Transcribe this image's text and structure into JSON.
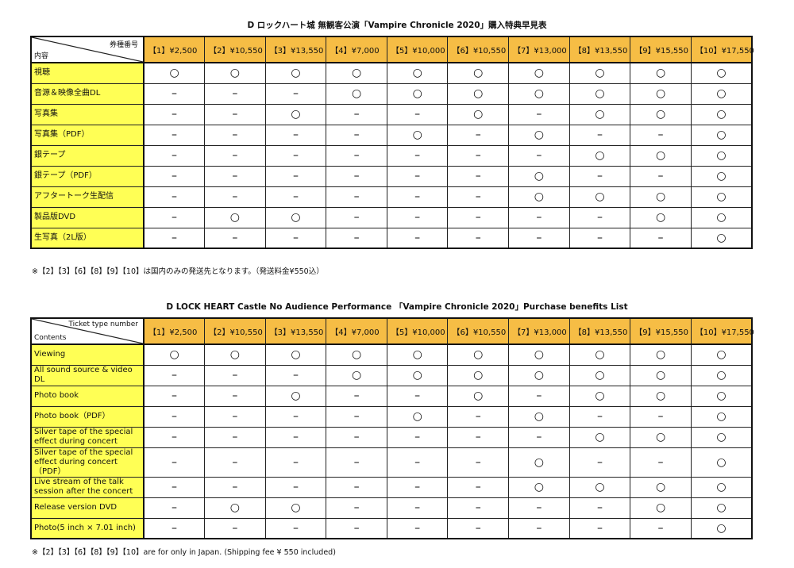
{
  "tables": [
    {
      "title": "D ロックハート城 無観客公演「Vampire Chronicle 2020」購入特典早見表",
      "corner_top": "券種番号",
      "corner_bottom": "内容",
      "columns": [
        "【1】¥2,500",
        "【2】¥10,550",
        "【3】¥13,550",
        "【4】¥7,000",
        "【5】¥10,000",
        "【6】¥10,550",
        "【7】¥13,000",
        "【8】¥13,550",
        "【9】¥15,550",
        "【10】¥17,550"
      ],
      "rows": [
        {
          "label": "視聴",
          "marks": [
            "○",
            "○",
            "○",
            "○",
            "○",
            "○",
            "○",
            "○",
            "○",
            "○"
          ]
        },
        {
          "label": "音源＆映像全曲DL",
          "marks": [
            "–",
            "–",
            "–",
            "○",
            "○",
            "○",
            "○",
            "○",
            "○",
            "○"
          ]
        },
        {
          "label": "写真集",
          "marks": [
            "–",
            "–",
            "○",
            "–",
            "–",
            "○",
            "–",
            "○",
            "○",
            "○"
          ]
        },
        {
          "label": "写真集（PDF）",
          "marks": [
            "–",
            "–",
            "–",
            "–",
            "○",
            "–",
            "○",
            "–",
            "–",
            "○"
          ]
        },
        {
          "label": "銀テープ",
          "marks": [
            "–",
            "–",
            "–",
            "–",
            "–",
            "–",
            "–",
            "○",
            "○",
            "○"
          ]
        },
        {
          "label": "銀テープ（PDF）",
          "marks": [
            "–",
            "–",
            "–",
            "–",
            "–",
            "–",
            "○",
            "–",
            "–",
            "○"
          ]
        },
        {
          "label": "アフタートーク生配信",
          "marks": [
            "–",
            "–",
            "–",
            "–",
            "–",
            "–",
            "○",
            "○",
            "○",
            "○"
          ]
        },
        {
          "label": "製品版DVD",
          "marks": [
            "–",
            "○",
            "○",
            "–",
            "–",
            "–",
            "–",
            "–",
            "○",
            "○"
          ]
        },
        {
          "label": "生写真（2L版）",
          "marks": [
            "–",
            "–",
            "–",
            "–",
            "–",
            "–",
            "–",
            "–",
            "–",
            "○"
          ]
        }
      ],
      "note": "※【2】【3】【6】【8】【9】【10】は国内のみの発送先となります。（発送料金¥550込）"
    },
    {
      "title": "D LOCK HEART Castle No Audience Performance 「Vampire Chronicle 2020」Purchase benefits List",
      "corner_top": "Ticket type number",
      "corner_bottom": "Contents",
      "columns": [
        "【1】¥2,500",
        "【2】¥10,550",
        "【3】¥13,550",
        "【4】¥7,000",
        "【5】¥10,000",
        "【6】¥10,550",
        "【7】¥13,000",
        "【8】¥13,550",
        "【9】¥15,550",
        "【10】¥17,550"
      ],
      "rows": [
        {
          "label": "Viewing",
          "marks": [
            "○",
            "○",
            "○",
            "○",
            "○",
            "○",
            "○",
            "○",
            "○",
            "○"
          ]
        },
        {
          "label": "All sound source & video DL",
          "marks": [
            "–",
            "–",
            "–",
            "○",
            "○",
            "○",
            "○",
            "○",
            "○",
            "○"
          ]
        },
        {
          "label": "Photo book",
          "marks": [
            "–",
            "–",
            "○",
            "–",
            "–",
            "○",
            "–",
            "○",
            "○",
            "○"
          ]
        },
        {
          "label": "Photo book（PDF）",
          "marks": [
            "–",
            "–",
            "–",
            "–",
            "○",
            "–",
            "○",
            "–",
            "–",
            "○"
          ]
        },
        {
          "label": "Silver tape of the special effect during concert",
          "marks": [
            "–",
            "–",
            "–",
            "–",
            "–",
            "–",
            "–",
            "○",
            "○",
            "○"
          ]
        },
        {
          "label": "Silver tape of the special effect during concert（PDF）",
          "marks": [
            "–",
            "–",
            "–",
            "–",
            "–",
            "–",
            "○",
            "–",
            "–",
            "○"
          ]
        },
        {
          "label": "Live stream of the talk session after the concert",
          "marks": [
            "–",
            "–",
            "–",
            "–",
            "–",
            "–",
            "○",
            "○",
            "○",
            "○"
          ]
        },
        {
          "label": "Release version DVD",
          "marks": [
            "–",
            "○",
            "○",
            "–",
            "–",
            "–",
            "–",
            "–",
            "○",
            "○"
          ]
        },
        {
          "label": "Photo(5 inch × 7.01 inch)",
          "marks": [
            "–",
            "–",
            "–",
            "–",
            "–",
            "–",
            "–",
            "–",
            "–",
            "○"
          ]
        }
      ],
      "note": "※【2】【3】【6】【8】【9】【10】are for only in Japan. (Shipping fee ¥ 550 included)"
    }
  ]
}
